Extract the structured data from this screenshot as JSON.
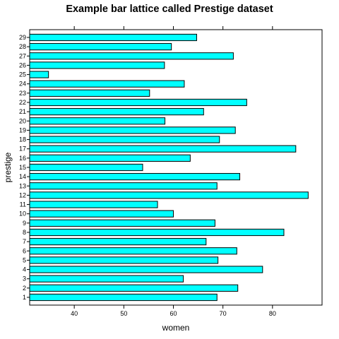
{
  "chart_data": {
    "type": "bar",
    "orientation": "horizontal",
    "title": "Example bar lattice called Prestige dataset",
    "xlabel": "women",
    "ylabel": "prestige",
    "xlim": [
      31,
      90
    ],
    "x_ticks": [
      40,
      50,
      60,
      70,
      80
    ],
    "categories": [
      "1",
      "2",
      "3",
      "4",
      "5",
      "6",
      "7",
      "8",
      "9",
      "10",
      "11",
      "12",
      "13",
      "14",
      "15",
      "16",
      "17",
      "18",
      "19",
      "20",
      "21",
      "22",
      "23",
      "24",
      "25",
      "26",
      "27",
      "28",
      "29"
    ],
    "values": [
      68.8,
      73.0,
      62.0,
      78.0,
      69.0,
      72.8,
      66.6,
      82.3,
      68.4,
      60.0,
      56.8,
      87.2,
      68.8,
      73.4,
      53.8,
      63.4,
      84.7,
      69.3,
      72.5,
      58.3,
      66.1,
      74.8,
      55.2,
      62.2,
      34.8,
      58.2,
      72.1,
      59.6,
      64.7
    ],
    "bar_color": "#00FFFF",
    "grid": false,
    "legend": "none"
  }
}
